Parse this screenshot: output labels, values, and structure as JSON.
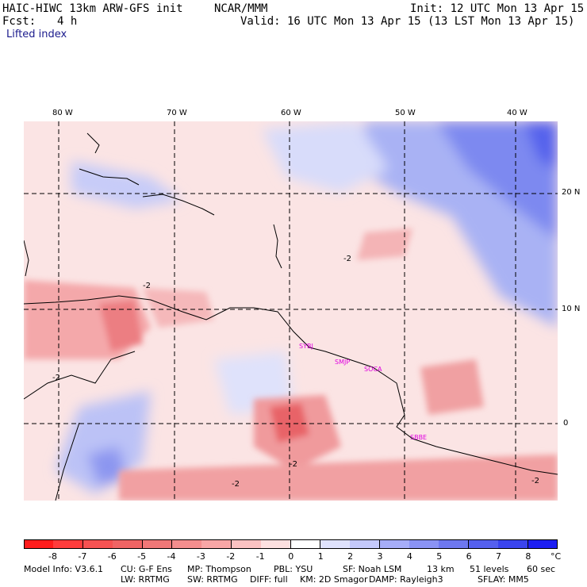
{
  "header": {
    "model_title": "HAIC-HIWC 13km ARW-GFS init",
    "institution": "NCAR/MMM",
    "init_line": "Init: 12 UTC Mon 13 Apr 15",
    "fcst_label": "Fcst:",
    "fcst_value": "4 h",
    "valid_line": "Valid: 16 UTC Mon 13 Apr 15 (13 LST Mon 13 Apr 15)",
    "field_name": "Lifted index"
  },
  "axes": {
    "lon_ticks": [
      "80 W",
      "70 W",
      "60 W",
      "50 W",
      "40 W"
    ],
    "lat_ticks": [
      "20 N",
      "10 N",
      "0"
    ]
  },
  "map": {
    "contour_labels": [
      "-2",
      "-2",
      "-2",
      "-2",
      "-2",
      "-2"
    ],
    "stations": [
      "SYBJ",
      "SMJP",
      "SOCA",
      "SBBE"
    ],
    "colors": {
      "station": "#e000e0",
      "gridline": "#000000",
      "coast": "#000000",
      "neutral": "#fbe6e6",
      "unstable_strong": "#ec6e72",
      "unstable": "#f6b0b2",
      "stable": "#a9b2f4",
      "stable_strong": "#6a76ec"
    }
  },
  "colorbar": {
    "unit": "°C",
    "labels": [
      "-8",
      "-7",
      "-6",
      "-5",
      "-4",
      "-3",
      "-2",
      "-1",
      "0",
      "1",
      "2",
      "3",
      "4",
      "5",
      "6",
      "7",
      "8"
    ],
    "colors": [
      "#ff1c1c",
      "#ff3c3c",
      "#f65252",
      "#f06464",
      "#f07878",
      "#f48e8e",
      "#f8a6a6",
      "#fbc2c2",
      "#fde0e0",
      "#ffffff",
      "#dfe2fd",
      "#c4c9fb",
      "#a6adf8",
      "#8a93f4",
      "#6e78f0",
      "#5560ee",
      "#3a44ee",
      "#1c1ef2"
    ]
  },
  "footer": {
    "line1": [
      "Model Info: V3.6.1",
      "CU: G-F Ens",
      "MP: Thompson",
      "PBL: YSU",
      "SF: Noah LSM",
      "13 km",
      "51 levels",
      "60 sec"
    ],
    "line2": [
      "LW: RRTMG",
      "SW: RRTMG",
      "DIFF: full",
      "KM: 2D Smagor",
      "DAMP: Rayleigh3",
      "SFLAY: MM5"
    ]
  }
}
